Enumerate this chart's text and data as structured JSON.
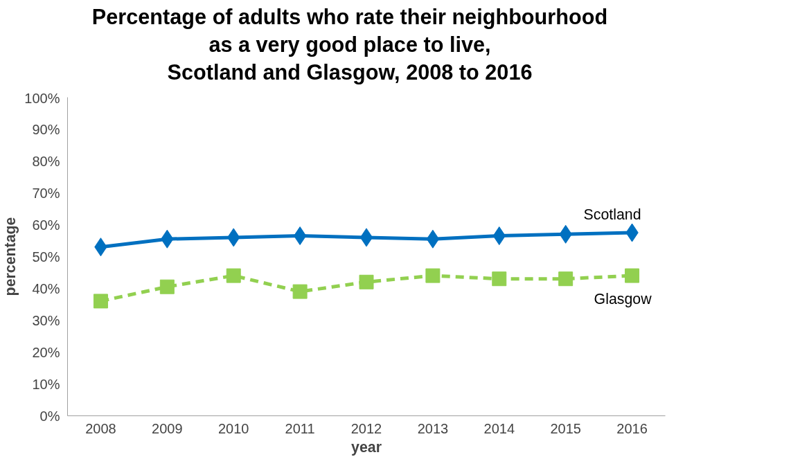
{
  "chart_data": {
    "type": "line",
    "title": "Percentage of adults who rate their neighbourhood\nas a very good place to live,\nScotland and Glasgow, 2008 to 2016",
    "xlabel": "year",
    "ylabel": "percentage",
    "categories": [
      "2008",
      "2009",
      "2010",
      "2011",
      "2012",
      "2013",
      "2014",
      "2015",
      "2016"
    ],
    "series": [
      {
        "name": "Scotland",
        "color": "#0070c0",
        "marker": "diamond",
        "line_style": "solid",
        "values": [
          53,
          55.5,
          56,
          56.5,
          56,
          55.5,
          56.5,
          57,
          57.5
        ]
      },
      {
        "name": "Glasgow",
        "color": "#92d050",
        "marker": "square",
        "line_style": "dashed",
        "values": [
          36,
          40.5,
          44,
          39,
          42,
          44,
          43,
          43,
          44
        ]
      }
    ],
    "ylim": [
      0,
      100
    ],
    "yticks": [
      {
        "value": 0,
        "label": "0%"
      },
      {
        "value": 10,
        "label": "10%"
      },
      {
        "value": 20,
        "label": "20%"
      },
      {
        "value": 30,
        "label": "30%"
      },
      {
        "value": 40,
        "label": "40%"
      },
      {
        "value": 50,
        "label": "50%"
      },
      {
        "value": 60,
        "label": "60%"
      },
      {
        "value": 70,
        "label": "70%"
      },
      {
        "value": 80,
        "label": "80%"
      },
      {
        "value": 90,
        "label": "90%"
      },
      {
        "value": 100,
        "label": "100%"
      }
    ],
    "grid": false
  }
}
